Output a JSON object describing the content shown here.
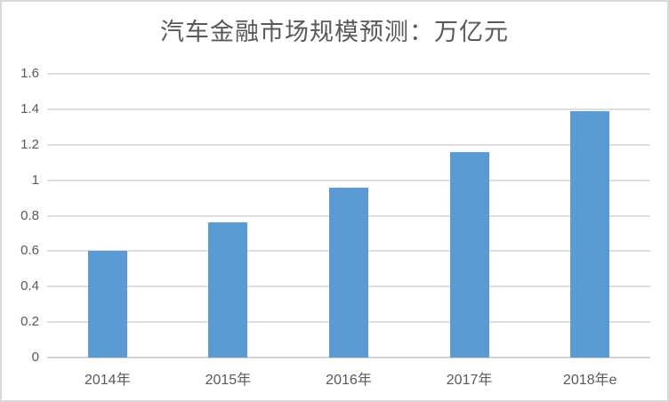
{
  "chart_data": {
    "type": "bar",
    "title": "汽车金融市场规模预测：万亿元",
    "categories": [
      "2014年",
      "2015年",
      "2016年",
      "2017年",
      "2018年e"
    ],
    "values": [
      0.6,
      0.76,
      0.96,
      1.16,
      1.39
    ],
    "xlabel": "",
    "ylabel": "",
    "ylim": [
      0,
      1.6
    ],
    "ytick_step": 0.2,
    "ytick_labels": [
      "0",
      "0.2",
      "0.4",
      "0.6",
      "0.8",
      "1",
      "1.2",
      "1.4",
      "1.6"
    ],
    "grid": true,
    "legend": "none",
    "bar_color": "#5b9bd5",
    "gridline_color": "#dedede",
    "axis_line_color": "#d2d2d2",
    "text_color": "#595959",
    "frame_border_color": "#d9d9d9",
    "background": "#ffffff"
  }
}
